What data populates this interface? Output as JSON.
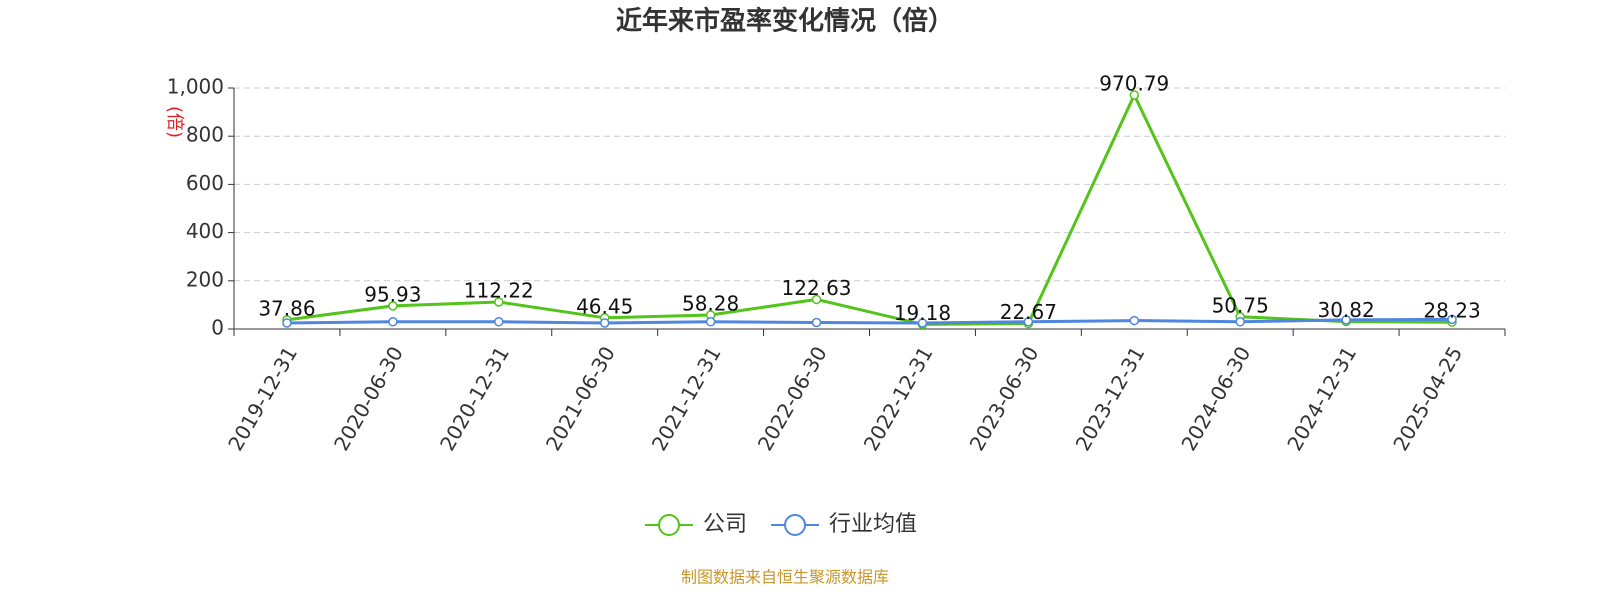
{
  "chart_data": {
    "type": "line",
    "title": "近年来市盈率变化情况（倍）",
    "y_label": "(倍)",
    "categories": [
      "2019-12-31",
      "2020-06-30",
      "2020-12-31",
      "2021-06-30",
      "2021-12-31",
      "2022-06-30",
      "2022-12-31",
      "2023-06-30",
      "2023-12-31",
      "2024-06-30",
      "2024-12-31",
      "2025-04-25"
    ],
    "series": [
      {
        "name": "公司",
        "color": "#52c41a",
        "values": [
          37.86,
          95.93,
          112.22,
          46.45,
          58.28,
          122.63,
          19.18,
          22.67,
          970.79,
          50.75,
          30.82,
          28.23
        ]
      },
      {
        "name": "行业均值",
        "color": "#4e86e0",
        "values": [
          25,
          30,
          30,
          25,
          30,
          27,
          25,
          30,
          35,
          30,
          38,
          40
        ]
      }
    ],
    "labeled_series": 0,
    "ylim": [
      0,
      1000
    ],
    "yticks": [
      0,
      200,
      400,
      600,
      800,
      {
        "value": 1000,
        "label": "1,000"
      }
    ],
    "grid": true,
    "source": "制图数据来自恒生聚源数据库"
  }
}
